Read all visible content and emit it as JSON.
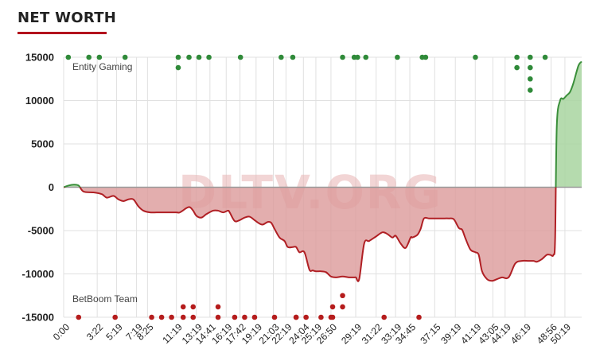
{
  "title": "NET WORTH",
  "watermark": "DLTV.ORG",
  "colors": {
    "accent": "#b3121d",
    "positive_line": "#3a8f3a",
    "positive_fill": "#a8d5a0",
    "negative_line": "#b01f24",
    "negative_fill": "#dc9a9a",
    "radiant_dot": "#2f8a39",
    "dire_dot": "#b51c1c",
    "grid": "#e0e0e0"
  },
  "chart_data": {
    "type": "area",
    "title": "NET WORTH",
    "xlabel": "",
    "ylabel": "",
    "ylim": [
      -15000,
      15000
    ],
    "xlim": [
      0,
      3120
    ],
    "y_ticks": [
      15000,
      10000,
      5000,
      0,
      -5000,
      -10000,
      -15000
    ],
    "x_tick_labels": [
      "0:00",
      "3:22",
      "5:19",
      "7:19",
      "8:25",
      "11:19",
      "13:19",
      "14:41",
      "16:19",
      "17:42",
      "19:19",
      "21:03",
      "22:19",
      "24:04",
      "25:19",
      "26:50",
      "29:19",
      "31:22",
      "33:19",
      "34:45",
      "37:15",
      "39:19",
      "41:19",
      "43:05",
      "44:19",
      "46:19",
      "48:56",
      "50:19"
    ],
    "x_tick_seconds": [
      0,
      202,
      319,
      439,
      505,
      679,
      799,
      881,
      979,
      1062,
      1159,
      1263,
      1339,
      1444,
      1519,
      1610,
      1759,
      1882,
      1999,
      2085,
      2235,
      2359,
      2479,
      2585,
      2659,
      2779,
      2936,
      3019
    ],
    "series": [
      {
        "name": "Net worth",
        "x": [
          0,
          30,
          60,
          90,
          120,
          180,
          230,
          260,
          300,
          330,
          360,
          390,
          420,
          450,
          480,
          520,
          560,
          600,
          640,
          680,
          700,
          740,
          760,
          780,
          800,
          830,
          860,
          900,
          930,
          960,
          990,
          1000,
          1030,
          1060,
          1090,
          1120,
          1150,
          1180,
          1200,
          1230,
          1250,
          1270,
          1300,
          1330,
          1350,
          1380,
          1400,
          1420,
          1450,
          1480,
          1500,
          1520,
          1550,
          1580,
          1610,
          1640,
          1680,
          1720,
          1750,
          1760,
          1780,
          1810,
          1840,
          1880,
          1920,
          1950,
          1980,
          2000,
          2030,
          2060,
          2090,
          2100,
          2130,
          2150,
          2170,
          2200,
          2240,
          2280,
          2320,
          2350,
          2380,
          2400,
          2420,
          2450,
          2480,
          2500,
          2520,
          2550,
          2580,
          2610,
          2640,
          2680,
          2720,
          2760,
          2800,
          2830,
          2850,
          2880,
          2910,
          2930,
          2950,
          2960,
          2970,
          2990,
          3010,
          3030,
          3050,
          3070,
          3100,
          3120
        ],
        "y": [
          0,
          200,
          300,
          200,
          -500,
          -600,
          -800,
          -1200,
          -1000,
          -1400,
          -1600,
          -1400,
          -1400,
          -2200,
          -2700,
          -2900,
          -2900,
          -2900,
          -2900,
          -2900,
          -2900,
          -2400,
          -2300,
          -2700,
          -3300,
          -3500,
          -3100,
          -2700,
          -2700,
          -2900,
          -2700,
          -2900,
          -3900,
          -3800,
          -3500,
          -3400,
          -3800,
          -4200,
          -4300,
          -4000,
          -4100,
          -4800,
          -5800,
          -6200,
          -6900,
          -6900,
          -6900,
          -7500,
          -7500,
          -9500,
          -9600,
          -9700,
          -9700,
          -9800,
          -10300,
          -10400,
          -10300,
          -10400,
          -10400,
          -10400,
          -10600,
          -6500,
          -6200,
          -5700,
          -5200,
          -5400,
          -5800,
          -5600,
          -6500,
          -7000,
          -5800,
          -5800,
          -5500,
          -4800,
          -3600,
          -3600,
          -3600,
          -3600,
          -3600,
          -3700,
          -4700,
          -4900,
          -5900,
          -7200,
          -7500,
          -7800,
          -9700,
          -10600,
          -10800,
          -10600,
          -10400,
          -10400,
          -8800,
          -8500,
          -8500,
          -8500,
          -8600,
          -8300,
          -7800,
          -7800,
          -7800,
          -6000,
          7000,
          10000,
          10200,
          10600,
          11000,
          12000,
          14000,
          14500
        ]
      }
    ],
    "radiant_events": {
      "label": "Entity Gaming",
      "x": [
        28,
        152,
        215,
        370,
        690,
        690,
        755,
        815,
        875,
        1065,
        1310,
        1380,
        1680,
        1750,
        1770,
        1820,
        2010,
        2160,
        2180,
        2480,
        2730,
        2730,
        2810,
        2810,
        2810,
        2810,
        2900
      ],
      "y": [
        15000,
        15000,
        15000,
        15000,
        15000,
        13800,
        15000,
        15000,
        15000,
        15000,
        15000,
        15000,
        15000,
        15000,
        15000,
        15000,
        15000,
        15000,
        15000,
        15000,
        15000,
        13800,
        15000,
        13800,
        12500,
        11200,
        15000
      ]
    },
    "dire_events": {
      "label": "BetBoom Team",
      "x": [
        90,
        310,
        530,
        590,
        650,
        720,
        720,
        780,
        780,
        930,
        930,
        1030,
        1090,
        1150,
        1270,
        1400,
        1400,
        1460,
        1550,
        1610,
        1620,
        1620,
        1680,
        1680,
        1930,
        2140
      ],
      "y": [
        -15000,
        -15000,
        -15000,
        -15000,
        -15000,
        -15000,
        -13800,
        -15000,
        -13800,
        -15000,
        -13800,
        -15000,
        -15000,
        -15000,
        -15000,
        -15000,
        -15000,
        -15000,
        -15000,
        -15000,
        -13800,
        -15000,
        -13800,
        -12500,
        -15000,
        -15000
      ]
    }
  }
}
